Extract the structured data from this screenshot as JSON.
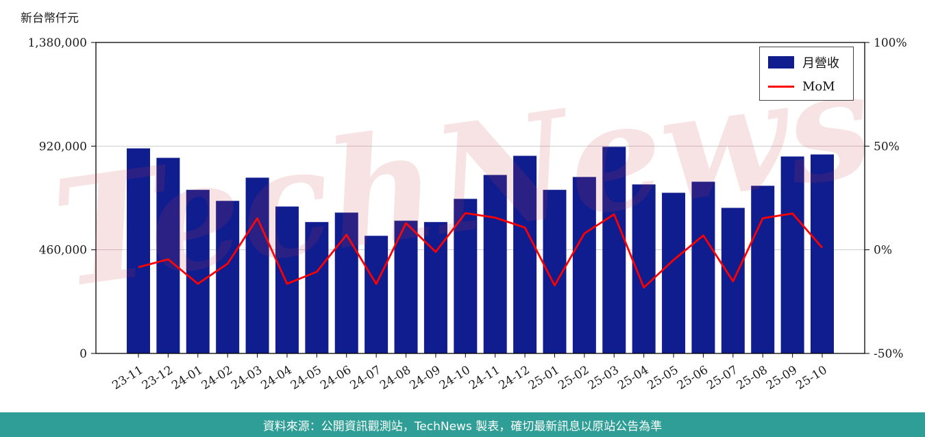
{
  "page": {
    "y_axis_title": "新台幣仟元",
    "watermark": "TechNews",
    "watermark_color": "rgba(201,62,75,0.15)",
    "footer_text": "資料來源：公開資訊觀測站，TechNews 製表，確切最新訊息以原站公告為準",
    "footer_bg": "#2E9E96"
  },
  "chart_data": {
    "type": "bar",
    "subtype": "bar+line dual axis",
    "title": "",
    "xlabel": "",
    "ylabel_left": "新台幣仟元",
    "ylabel_right": "%",
    "grid": "horizontal",
    "legend_position": "top-right",
    "categories": [
      "23-11",
      "23-12",
      "24-01",
      "24-02",
      "24-03",
      "24-04",
      "24-05",
      "24-06",
      "24-07",
      "24-08",
      "24-09",
      "24-10",
      "24-11",
      "24-12",
      "25-01",
      "25-02",
      "25-03",
      "25-04",
      "25-05",
      "25-06",
      "25-07",
      "25-08",
      "25-09",
      "25-10"
    ],
    "series": [
      {
        "name": "月營收",
        "type": "bar",
        "axis": "left",
        "color": "#101D8F",
        "values": [
          910000,
          868000,
          726000,
          677000,
          780000,
          652000,
          583000,
          625000,
          522000,
          589000,
          583000,
          686000,
          792000,
          877000,
          726000,
          783000,
          917000,
          750000,
          713000,
          762000,
          646000,
          744000,
          874000,
          883000
        ]
      },
      {
        "name": "MoM",
        "type": "line",
        "axis": "right",
        "unit": "%",
        "color": "#FF0000",
        "values": [
          -8.4,
          -4.6,
          -16.4,
          -6.7,
          15.2,
          -16.4,
          -10.6,
          7.2,
          -16.5,
          12.8,
          -1.0,
          17.7,
          15.5,
          10.7,
          -17.2,
          7.9,
          17.1,
          -18.2,
          -4.9,
          6.9,
          -15.2,
          15.2,
          17.5,
          1.0
        ]
      }
    ],
    "left_axis": {
      "max": 1380000,
      "min": 0,
      "ticks": [
        0,
        460000,
        920000,
        1380000
      ],
      "labels": [
        "0",
        "460,000",
        "920,000",
        "1,380,000"
      ]
    },
    "right_axis": {
      "min": -50,
      "max": 100,
      "ticks": [
        -50,
        0,
        50,
        100
      ],
      "labels": [
        "-50%",
        "0%",
        "50%",
        "100%"
      ]
    }
  }
}
